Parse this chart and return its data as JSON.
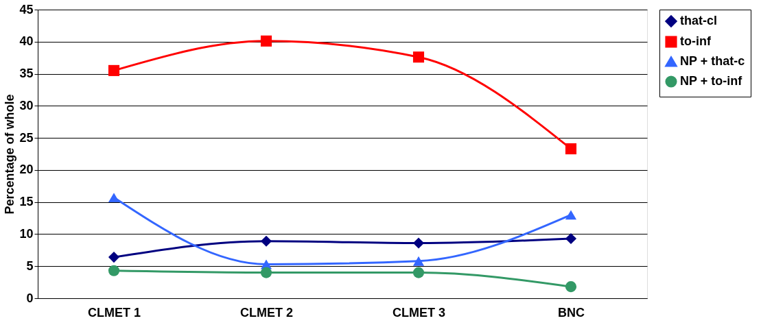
{
  "chart_data": {
    "type": "line",
    "ylabel": "Percentage of whole",
    "categories": [
      "CLMET 1",
      "CLMET 2",
      "CLMET 3",
      "BNC"
    ],
    "series": [
      {
        "name": "that-cl",
        "color": "#000080",
        "marker": "diamond",
        "values": [
          6.4,
          8.9,
          8.6,
          9.3
        ]
      },
      {
        "name": "to-inf",
        "color": "#ff0000",
        "marker": "square",
        "values": [
          35.5,
          40.1,
          37.6,
          23.3
        ]
      },
      {
        "name": "NP + that-c",
        "color": "#3366ff",
        "marker": "triangle",
        "values": [
          15.7,
          5.3,
          5.8,
          13.0
        ]
      },
      {
        "name": "NP + to-inf",
        "color": "#339966",
        "marker": "circle",
        "values": [
          4.3,
          4.0,
          4.0,
          1.8
        ]
      }
    ],
    "ylim": [
      0,
      45
    ],
    "yticks": [
      0,
      5,
      10,
      15,
      20,
      25,
      30,
      35,
      40,
      45
    ],
    "grid": "y",
    "legend": "right",
    "line_style": "solid"
  }
}
